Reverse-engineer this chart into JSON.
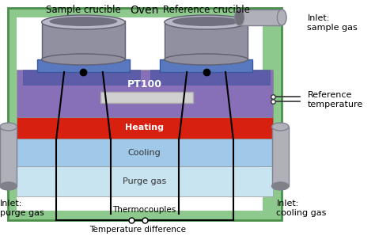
{
  "title_oven": "Oven",
  "label_sample": "Sample crucible",
  "label_reference": "Reference crucible",
  "label_pt100": "PT100",
  "label_heating": "Heating",
  "label_cooling": "Cooling",
  "label_purge": "Purge gas",
  "label_thermocouples": "Thermocouples",
  "label_temp_diff": "Temperature difference",
  "label_ref_temp": "Reference\ntemperature",
  "label_inlet_sample": "Inlet:\nsample gas",
  "label_inlet_purge": "Inlet:\npurge gas",
  "label_inlet_cooling": "Inlet:\ncooling gas",
  "green_light": "#8dc88d",
  "green_mid": "#6ab06a",
  "green_dark": "#4a904a",
  "white": "#ffffff",
  "purge_color": "#c8e4f0",
  "cooling_color": "#a0c8e8",
  "heating_color": "#d82010",
  "pt100_color": "#8870b8",
  "platform_color": "#5878c0",
  "platform_dark": "#3858a0",
  "crucible_body": "#9090a0",
  "crucible_top": "#b8b8c8",
  "crucible_dark": "#606070",
  "crucible_inner": "#707080",
  "sensor_color": "#d0d0d0",
  "pipe_body": "#b0b0b8",
  "pipe_dark": "#808090",
  "line_color": "#000000"
}
